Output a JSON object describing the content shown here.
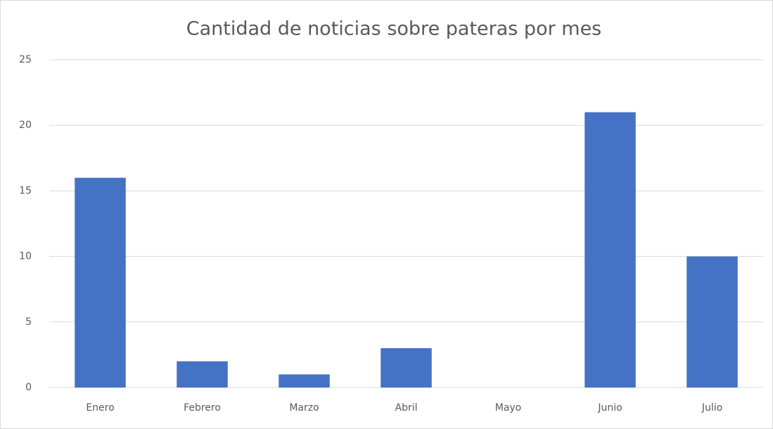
{
  "chart_data": {
    "type": "bar",
    "title": "Cantidad de noticias sobre pateras por mes",
    "categories": [
      "Enero",
      "Febrero",
      "Marzo",
      "Abril",
      "Mayo",
      "Junio",
      "Julio"
    ],
    "values": [
      16,
      2,
      1,
      3,
      0,
      21,
      10
    ],
    "color": "#4472c4",
    "ylim": [
      0,
      25
    ],
    "yticks": [
      0,
      5,
      10,
      15,
      20,
      25
    ],
    "grid": true
  }
}
